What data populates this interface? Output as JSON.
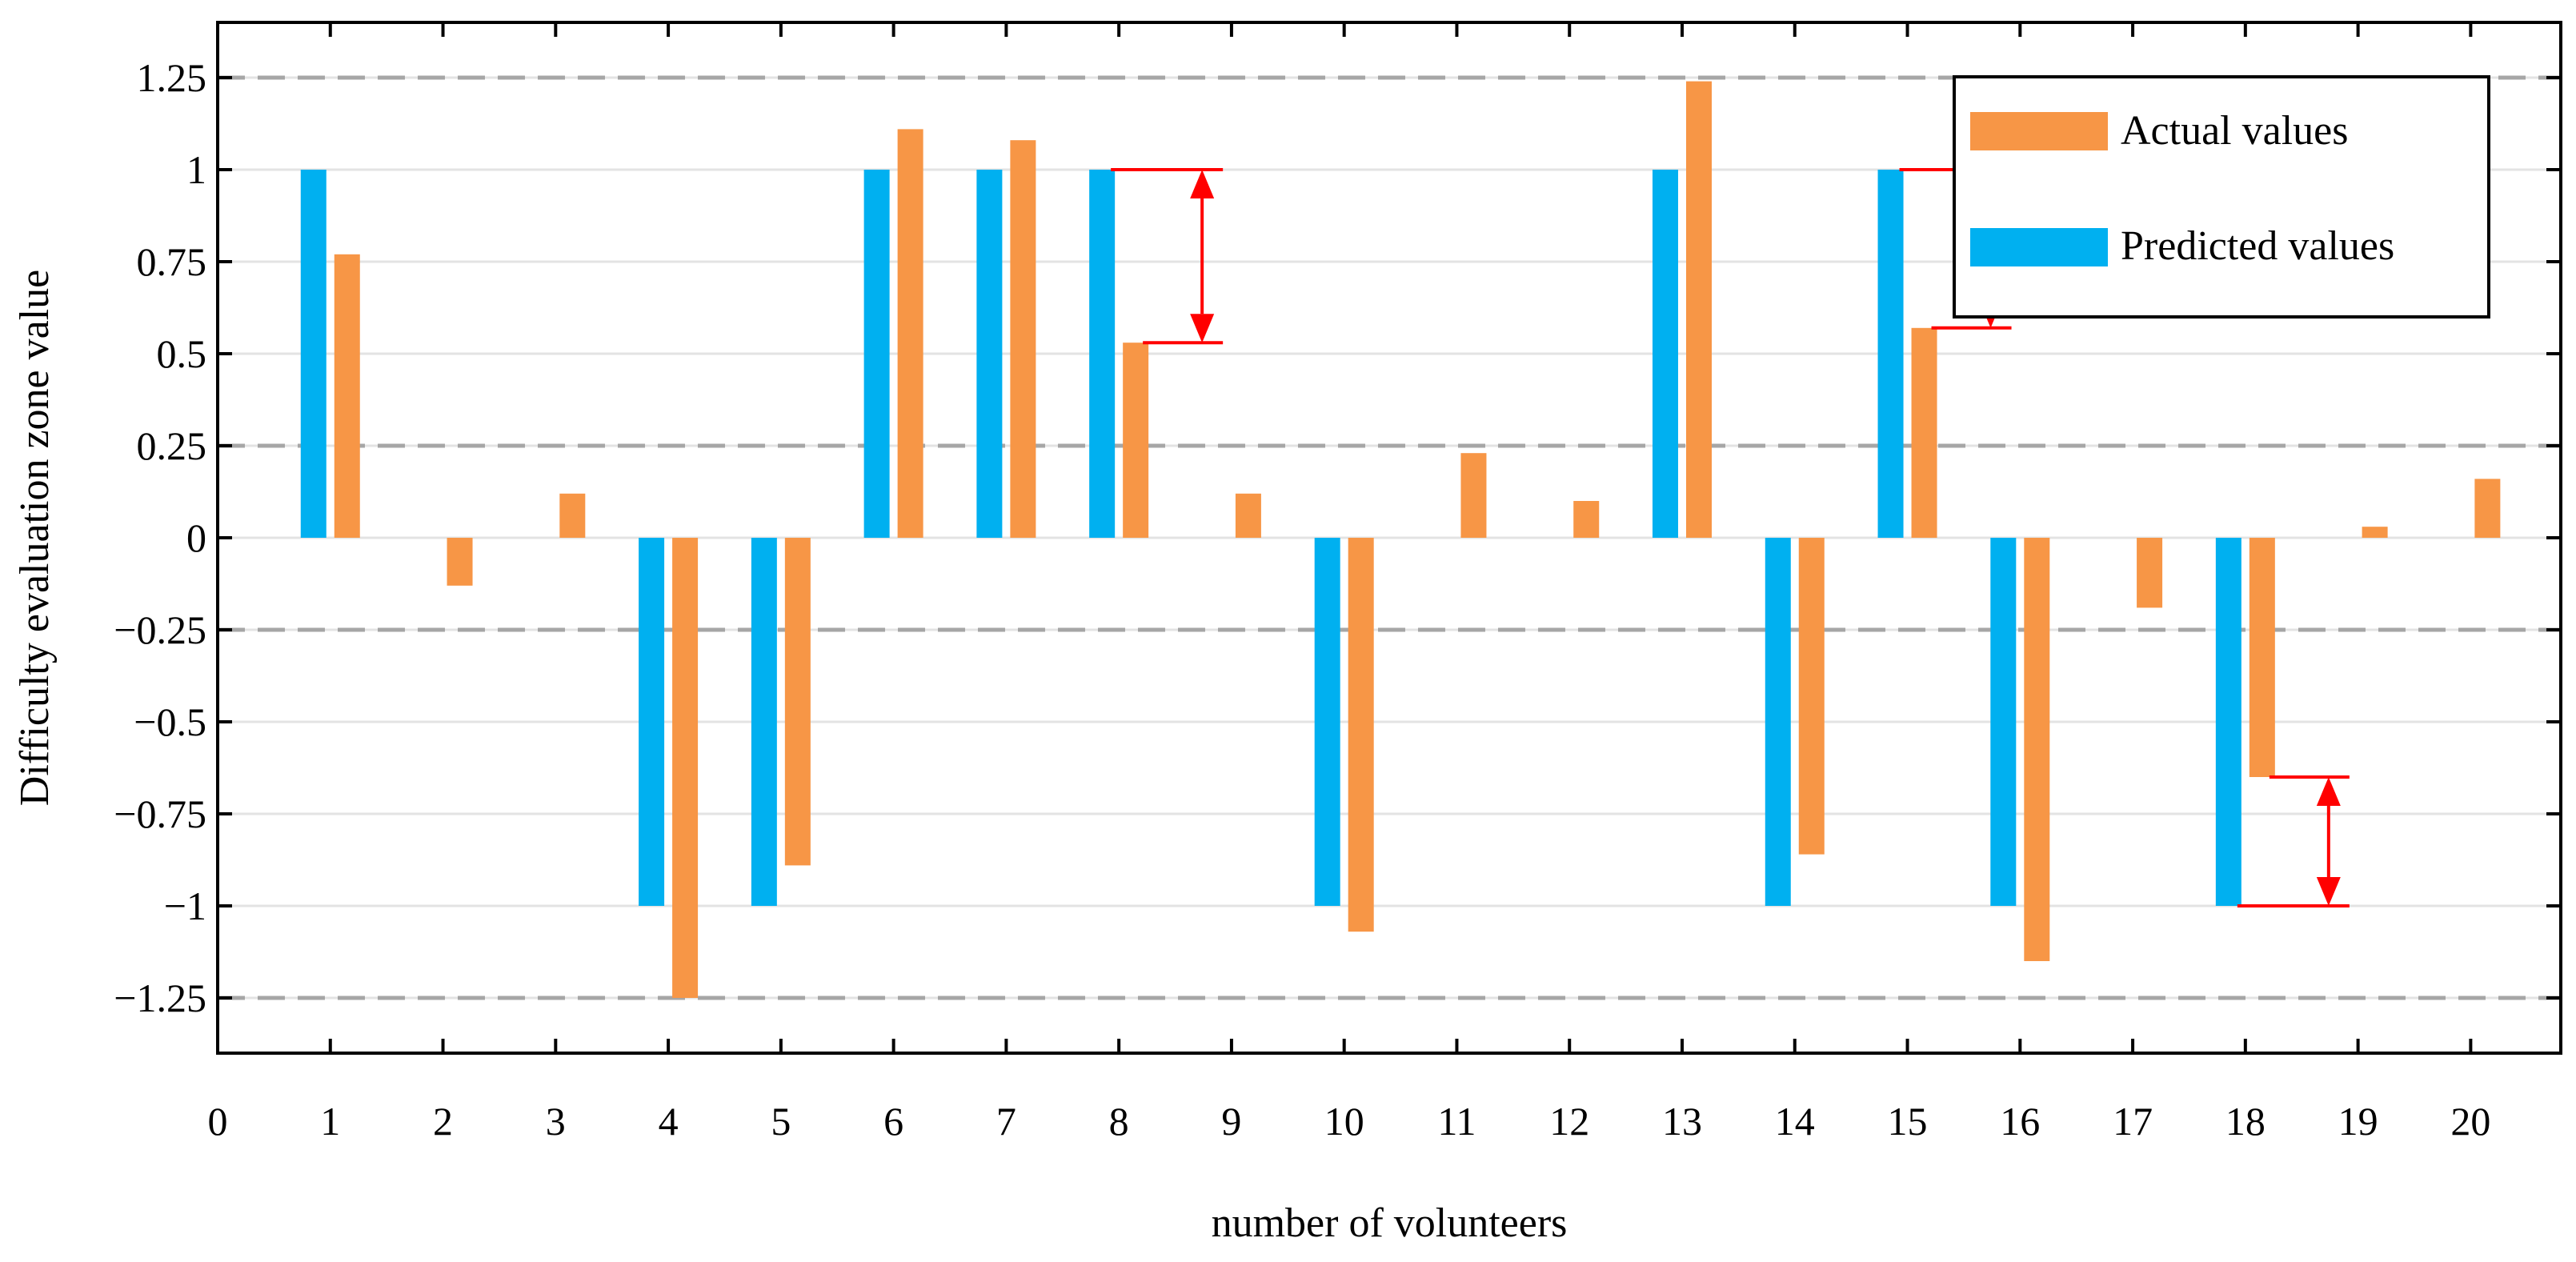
{
  "chart_data": {
    "type": "bar",
    "title": "",
    "xlabel": "number of volunteers",
    "ylabel": "Difficulty evaluation zone value",
    "ylim": [
      -1.4,
      1.4
    ],
    "xlim": [
      0,
      20.8
    ],
    "x_ticks": [
      "0",
      "1",
      "2",
      "3",
      "4",
      "5",
      "6",
      "7",
      "8",
      "9",
      "10",
      "11",
      "12",
      "13",
      "14",
      "15",
      "16",
      "17",
      "18",
      "19",
      "20"
    ],
    "y_ticks": [
      {
        "value": 1.25,
        "label": "1.25"
      },
      {
        "value": 1,
        "label": "1"
      },
      {
        "value": 0.75,
        "label": "0.75"
      },
      {
        "value": 0.5,
        "label": "0.5"
      },
      {
        "value": 0.25,
        "label": "0.25"
      },
      {
        "value": 0,
        "label": "0"
      },
      {
        "value": -0.25,
        "label": "-0.25"
      },
      {
        "value": -0.5,
        "label": "-0.5"
      },
      {
        "value": -0.75,
        "label": "-0.75"
      },
      {
        "value": -1,
        "label": "-1"
      },
      {
        "value": -1.25,
        "label": "-1.25"
      }
    ],
    "zone_boundaries": [
      1.25,
      0.25,
      -0.25,
      -1.25
    ],
    "categories": [
      1,
      2,
      3,
      4,
      5,
      6,
      7,
      8,
      9,
      10,
      11,
      12,
      13,
      14,
      15,
      16,
      17,
      18,
      19,
      20
    ],
    "series": [
      {
        "name": "Predicted values",
        "color": "#00B0F0",
        "values": [
          1,
          0,
          0,
          -1,
          -1,
          1,
          1,
          1,
          0,
          -1,
          0,
          0,
          1,
          -1,
          1,
          -1,
          0,
          -1,
          0,
          0
        ]
      },
      {
        "name": "Actual values",
        "color": "#F79646",
        "values": [
          0.77,
          -0.13,
          0.12,
          -1.25,
          -0.89,
          1.11,
          1.08,
          0.53,
          0.12,
          -1.07,
          0.23,
          0.1,
          1.24,
          -0.86,
          0.57,
          -1.15,
          -0.19,
          -0.65,
          0.03,
          0.16
        ]
      }
    ],
    "legend": {
      "placement": "top-right",
      "entries": [
        "Actual values",
        "Predicted values"
      ]
    },
    "error_annotations": [
      {
        "volunteer": 8,
        "from": 1,
        "to": 0.53
      },
      {
        "volunteer": 15,
        "from": 1,
        "to": 0.57
      },
      {
        "volunteer": 18,
        "from": -1,
        "to": -0.65
      }
    ],
    "colors": {
      "annotation": "#FF0000",
      "zone_line": "#A6A6A6",
      "grid": "#E3E3E3"
    }
  }
}
